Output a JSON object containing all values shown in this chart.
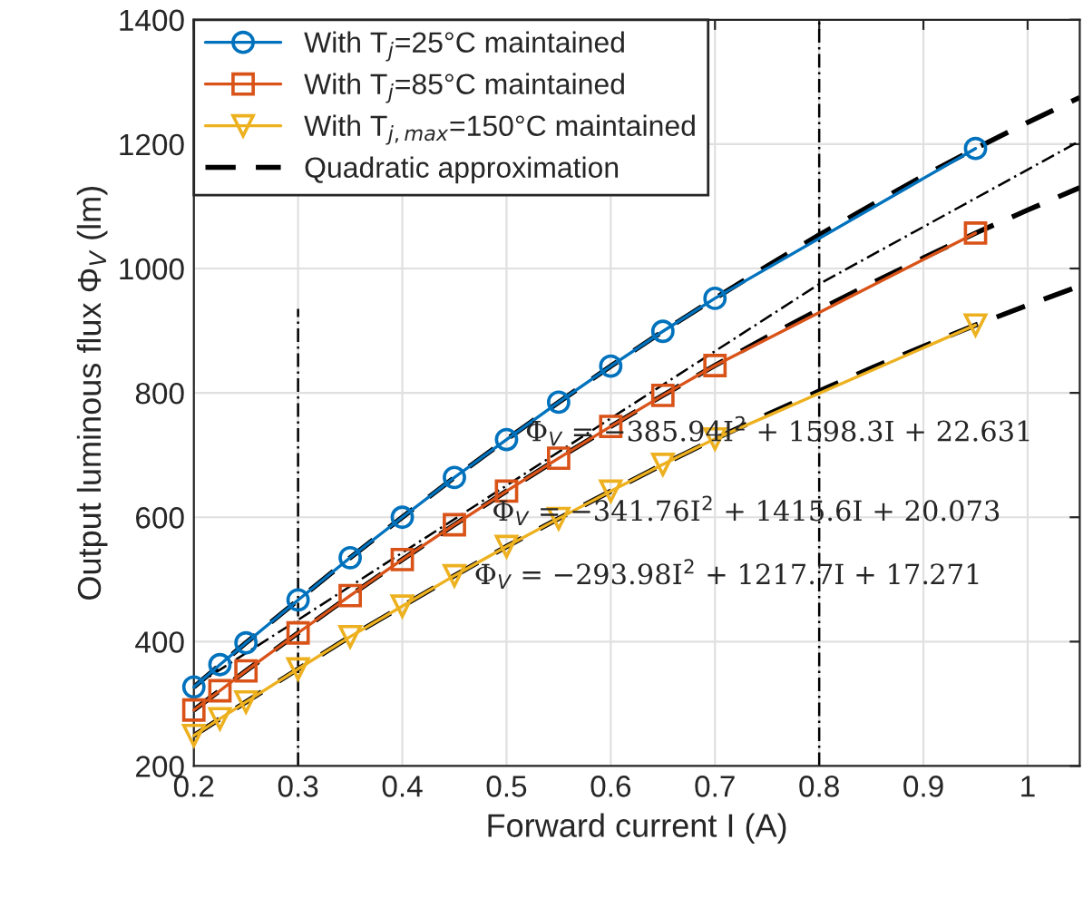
{
  "chart_data": {
    "type": "line",
    "xlabel": "Forward current I (A)",
    "ylabel": "Output luminous flux Φ$_{V}$ (lm)",
    "xlim": [
      0.2,
      1.05
    ],
    "xticks": [
      0.2,
      0.3,
      0.4,
      0.5,
      0.6,
      0.7,
      0.8,
      0.9,
      1
    ],
    "ylim": [
      200,
      1400
    ],
    "yticks": [
      200,
      400,
      600,
      800,
      1000,
      1200,
      1400
    ],
    "grid": true,
    "legend": "top left",
    "series": [
      {
        "name": "With T$_{j}$=25°C maintained",
        "color": "#0072bd",
        "marker": "circle",
        "line_style": "solid",
        "x": [
          0.2,
          0.225,
          0.25,
          0.3,
          0.35,
          0.4,
          0.45,
          0.5,
          0.55,
          0.6,
          0.65,
          0.7,
          0.95
        ],
        "values": [
          327,
          363,
          398,
          467,
          535,
          600,
          664,
          725,
          785,
          843,
          899,
          952,
          1193
        ]
      },
      {
        "name": "With T$_{j}$=85°C maintained",
        "color": "#d95319",
        "marker": "square",
        "line_style": "solid",
        "x": [
          0.2,
          0.225,
          0.25,
          0.3,
          0.35,
          0.4,
          0.45,
          0.5,
          0.55,
          0.6,
          0.65,
          0.7,
          0.95
        ],
        "values": [
          290,
          321,
          353,
          414,
          474,
          532,
          588,
          642,
          695,
          746,
          796,
          844,
          1057
        ]
      },
      {
        "name": "With T$_{j,max}$=150°C maintained",
        "color": "#edb120",
        "marker": "triangle",
        "line_style": "solid",
        "x": [
          0.2,
          0.225,
          0.25,
          0.3,
          0.35,
          0.4,
          0.45,
          0.5,
          0.55,
          0.6,
          0.65,
          0.7,
          0.95
        ],
        "values": [
          249,
          276,
          303,
          356,
          408,
          457,
          506,
          553,
          598,
          642,
          685,
          726,
          909
        ]
      },
      {
        "name": "Quadratic approximation",
        "color": "#000000",
        "marker": "none",
        "line_style": "dashed",
        "x": [
          0.2,
          0.25,
          0.3,
          0.35,
          0.4,
          0.45,
          0.5,
          0.55,
          0.6,
          0.65,
          0.7,
          0.75,
          0.8,
          0.85,
          0.9,
          0.95,
          1.0,
          1.05
        ],
        "values": [
          327,
          398,
          467,
          535,
          600,
          664,
          725,
          785,
          843,
          899,
          952,
          1004,
          1054,
          1102,
          1149,
          1193,
          1235,
          1275
        ]
      },
      {
        "color": "#000000",
        "marker": "none",
        "line_style": "dashed",
        "x": [
          0.2,
          0.25,
          0.3,
          0.35,
          0.4,
          0.45,
          0.5,
          0.55,
          0.6,
          0.65,
          0.7,
          0.75,
          0.8,
          0.85,
          0.9,
          0.95,
          1.0,
          1.05
        ],
        "values": [
          290,
          353,
          414,
          474,
          532,
          588,
          642,
          695,
          746,
          796,
          844,
          890,
          934,
          976,
          1017,
          1057,
          1094,
          1130
        ]
      },
      {
        "color": "#000000",
        "marker": "none",
        "line_style": "dashed",
        "x": [
          0.2,
          0.25,
          0.3,
          0.35,
          0.4,
          0.45,
          0.5,
          0.55,
          0.6,
          0.65,
          0.7,
          0.75,
          0.8,
          0.85,
          0.9,
          0.95,
          1.0,
          1.05
        ],
        "values": [
          249,
          303,
          356,
          408,
          457,
          506,
          553,
          598,
          642,
          685,
          726,
          765,
          803,
          840,
          875,
          909,
          941,
          972
        ]
      },
      {
        "color": "#000000",
        "marker": "none",
        "line_style": "dashdot",
        "x": [
          0.2,
          0.3,
          0.8,
          1.05
        ],
        "values": [
          328,
          435,
          975,
          1205
        ]
      },
      {
        "color": "#000000",
        "marker": "none",
        "line_style": "dashdot",
        "x": [
          0.3,
          0.3
        ],
        "values": [
          200,
          935
        ]
      },
      {
        "color": "#000000",
        "marker": "none",
        "line_style": "dashdot",
        "x": [
          0.8,
          0.8
        ],
        "values": [
          200,
          1400
        ]
      }
    ],
    "annotations": [
      {
        "text": "Φ$_{V}$ = −385.94I$^{2}$ + 1598.3I + 22.631",
        "x": 0.518,
        "y": 737
      },
      {
        "text": "Φ$_{V}$ = −341.76I$^{2}$ + 1415.6I + 20.073",
        "x": 0.486,
        "y": 609
      },
      {
        "text": "Φ$_{V}$ = −293.98I$^{2}$ + 1217.7I + 17.271",
        "x": 0.469,
        "y": 507
      }
    ]
  }
}
